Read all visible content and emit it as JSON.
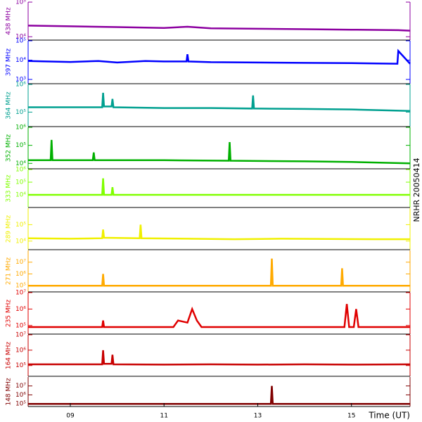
{
  "annotation": "NRHR 20050414",
  "chart_data": [
    {
      "type": "line",
      "title": "438 MHz",
      "color": "#8c00a0",
      "log_scale": true,
      "xlim": [
        8.1,
        16.25
      ],
      "ylim": [
        8000,
        100000
      ],
      "yticks": [
        {
          "value": 10000,
          "label": "10⁴"
        },
        {
          "value": 100000,
          "label": "10⁵"
        }
      ],
      "x": [
        8.1,
        9,
        10,
        11,
        11.5,
        12,
        13,
        14,
        15,
        16,
        16.25
      ],
      "values": [
        21000,
        20000,
        19000,
        18000,
        19500,
        17500,
        17000,
        16500,
        16000,
        15500,
        15000
      ]
    },
    {
      "type": "line",
      "title": "397 MHz",
      "color": "#0000ff",
      "log_scale": true,
      "xlim": [
        8.1,
        16.25
      ],
      "ylim": [
        600,
        100000
      ],
      "yticks": [
        {
          "value": 1000,
          "label": "10³"
        },
        {
          "value": 10000,
          "label": "10⁴"
        },
        {
          "value": 100000,
          "label": "10⁵"
        }
      ],
      "x": [
        8.1,
        9,
        9.6,
        10,
        10.6,
        11,
        11.48,
        11.5,
        11.52,
        12,
        13,
        14,
        15,
        15.98,
        16,
        16.25
      ],
      "values": [
        9000,
        8000,
        9000,
        7500,
        9000,
        8500,
        8500,
        20000,
        8500,
        7800,
        7500,
        7200,
        7000,
        6500,
        30000,
        6500
      ]
    },
    {
      "type": "line",
      "title": "364 MHz",
      "color": "#00a090",
      "log_scale": true,
      "xlim": [
        8.1,
        16.25
      ],
      "ylim": [
        30000,
        1000000
      ],
      "yticks": [
        {
          "value": 100000,
          "label": "10⁵"
        },
        {
          "value": 1000000,
          "label": "10⁶"
        }
      ],
      "x": [
        8.1,
        9,
        9.68,
        9.7,
        9.72,
        9.88,
        9.9,
        9.92,
        11,
        12,
        12.88,
        12.9,
        12.92,
        14,
        15,
        16.25
      ],
      "values": [
        150000,
        150000,
        150000,
        500000,
        160000,
        160000,
        300000,
        150000,
        140000,
        140000,
        135000,
        400000,
        135000,
        130000,
        125000,
        110000
      ]
    },
    {
      "type": "line",
      "title": "352 MHz",
      "color": "#00b000",
      "log_scale": true,
      "xlim": [
        8.1,
        16.25
      ],
      "ylim": [
        5000,
        1000000
      ],
      "yticks": [
        {
          "value": 10000,
          "label": "10⁴"
        },
        {
          "value": 100000,
          "label": "10⁵"
        },
        {
          "value": 1000000,
          "label": "10⁶"
        }
      ],
      "x": [
        8.1,
        8.58,
        8.6,
        8.62,
        9.48,
        9.5,
        9.52,
        11,
        12.38,
        12.4,
        12.42,
        14,
        15,
        16.25
      ],
      "values": [
        15000,
        15000,
        200000,
        15000,
        15000,
        40000,
        15000,
        15000,
        14000,
        150000,
        14000,
        13000,
        12000,
        10000
      ]
    },
    {
      "type": "line",
      "title": "333 MHz",
      "color": "#80ff00",
      "log_scale": true,
      "xlim": [
        8.1,
        16.25
      ],
      "ylim": [
        1000,
        1000000
      ],
      "yticks": [
        {
          "value": 10000,
          "label": "10⁴"
        },
        {
          "value": 100000,
          "label": "10⁵"
        },
        {
          "value": 1000000,
          "label": "10⁶"
        }
      ],
      "x": [
        8.1,
        9.68,
        9.7,
        9.72,
        9.88,
        9.9,
        9.92,
        16.25
      ],
      "values": [
        10000,
        10000,
        200000,
        10000,
        10000,
        40000,
        10000,
        10000
      ]
    },
    {
      "type": "line",
      "title": "289 MHz",
      "color": "#f0f000",
      "log_scale": true,
      "xlim": [
        8.1,
        16.25
      ],
      "ylim": [
        3000,
        1000000
      ],
      "yticks": [
        {
          "value": 10000,
          "label": "10⁴"
        },
        {
          "value": 100000,
          "label": "10⁵"
        }
      ],
      "x": [
        8.1,
        9,
        9.68,
        9.7,
        9.72,
        10.48,
        10.5,
        10.52,
        11.5,
        12.5,
        13.5,
        14.5,
        15.5,
        16.25
      ],
      "values": [
        15000,
        14000,
        15000,
        50000,
        16000,
        15000,
        100000,
        15000,
        14000,
        13000,
        14000,
        13500,
        13000,
        13000
      ]
    },
    {
      "type": "line",
      "title": "271 MHz",
      "color": "#ffaa00",
      "log_scale": true,
      "xlim": [
        8.1,
        16.25
      ],
      "ylim": [
        30000,
        100000000
      ],
      "yticks": [
        {
          "value": 100000,
          "label": "10⁵"
        },
        {
          "value": 1000000,
          "label": "10⁶"
        },
        {
          "value": 10000000,
          "label": "10⁷"
        }
      ],
      "x": [
        8.1,
        9.68,
        9.7,
        9.72,
        13.28,
        13.3,
        13.32,
        14.78,
        14.8,
        14.82,
        16.25
      ],
      "values": [
        100000,
        100000,
        1000000,
        100000,
        100000,
        20000000,
        100000,
        100000,
        3000000,
        100000,
        100000
      ]
    },
    {
      "type": "line",
      "title": "235 MHz",
      "color": "#e00000",
      "log_scale": true,
      "xlim": [
        8.1,
        16.25
      ],
      "ylim": [
        30000,
        10000000
      ],
      "yticks": [
        {
          "value": 100000,
          "label": "10⁵"
        },
        {
          "value": 1000000,
          "label": "10⁶"
        },
        {
          "value": 10000000,
          "label": "10⁷"
        }
      ],
      "x": [
        8.1,
        9.68,
        9.7,
        9.72,
        11.2,
        11.3,
        11.5,
        11.6,
        11.7,
        11.8,
        14.85,
        14.9,
        14.95,
        15.05,
        15.1,
        15.15,
        16.25
      ],
      "values": [
        80000,
        80000,
        200000,
        80000,
        80000,
        200000,
        150000,
        1000000,
        200000,
        80000,
        80000,
        2000000,
        80000,
        80000,
        1000000,
        80000,
        80000
      ]
    },
    {
      "type": "line",
      "title": "164 MHz",
      "color": "#c80000",
      "log_scale": true,
      "xlim": [
        8.1,
        16.25
      ],
      "ylim": [
        20000,
        10000000
      ],
      "yticks": [
        {
          "value": 100000,
          "label": "10⁵"
        },
        {
          "value": 1000000,
          "label": "10⁶"
        },
        {
          "value": 10000000,
          "label": "10⁷"
        }
      ],
      "x": [
        8.1,
        9.68,
        9.7,
        9.72,
        9.88,
        9.9,
        9.92,
        11,
        12,
        13,
        14,
        15,
        16.25
      ],
      "values": [
        120000,
        120000,
        1000000,
        130000,
        130000,
        500000,
        120000,
        115000,
        120000,
        115000,
        120000,
        115000,
        120000
      ]
    },
    {
      "type": "line",
      "title": "148 MHz",
      "color": "#800000",
      "log_scale": true,
      "xlim": [
        8.1,
        16.25
      ],
      "ylim": [
        50000,
        100000000
      ],
      "yticks": [
        {
          "value": 100000,
          "label": "10⁵"
        },
        {
          "value": 1000000,
          "label": "10⁶"
        },
        {
          "value": 10000000,
          "label": "10⁷"
        }
      ],
      "xticks": [
        {
          "value": 9,
          "label": "09"
        },
        {
          "value": 11,
          "label": "11"
        },
        {
          "value": 13,
          "label": "13"
        },
        {
          "value": 15,
          "label": "15"
        }
      ],
      "xlabel": "Time (UT)",
      "x": [
        8.1,
        13.28,
        13.3,
        13.32,
        16.25
      ],
      "values": [
        100000,
        100000,
        10000000,
        100000,
        100000
      ]
    }
  ]
}
